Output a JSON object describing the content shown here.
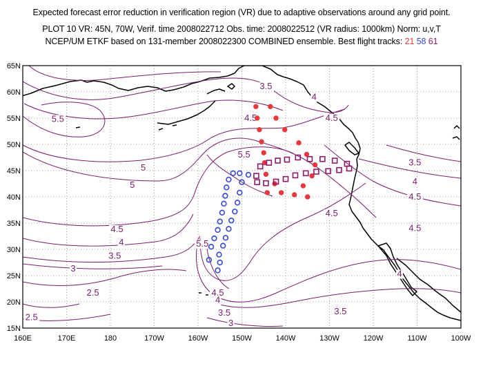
{
  "header": {
    "line1": "Expected forecast error reduction in verification region (VR) due to adaptive observations around any grid point.",
    "line2": "PLOT 10 VR: 45N, 70W, Verif. time 2008022712 Obs. time: 2008022512 (VR radius: 1000km) Norm: u,v,T",
    "line3_prefix": "NCEP/UM ETKF based on 131-member 2008022300 COMBINED ensemble.  Best flight tracks:",
    "track_21": "21",
    "track_58": "58",
    "track_61": "61"
  },
  "axes": {
    "lon_labels": [
      "160E",
      "170E",
      "180",
      "170W",
      "160W",
      "150W",
      "140W",
      "130W",
      "120W",
      "110W",
      "100W"
    ],
    "lat_labels": [
      "15N",
      "20N",
      "25N",
      "30N",
      "35N",
      "40N",
      "45N",
      "50N",
      "55N",
      "60N",
      "65N"
    ]
  },
  "contour_labels": [
    {
      "text": "3.5",
      "lon": -144.5,
      "lat": 60.5
    },
    {
      "text": "4",
      "lon": -133.5,
      "lat": 58.5
    },
    {
      "text": "4.5",
      "lon": -148,
      "lat": 54.5
    },
    {
      "text": "4.5",
      "lon": -129.5,
      "lat": 54.5
    },
    {
      "text": "5.5",
      "lon": 168,
      "lat": 54.3
    },
    {
      "text": "5.5",
      "lon": -149.5,
      "lat": 47.5
    },
    {
      "text": "5",
      "lon": -172.5,
      "lat": 45.0
    },
    {
      "text": "5",
      "lon": -175,
      "lat": 41.7
    },
    {
      "text": "3.5",
      "lon": -110.5,
      "lat": 46.0
    },
    {
      "text": "4",
      "lon": -110.5,
      "lat": 42.4
    },
    {
      "text": "4.5",
      "lon": -110.5,
      "lat": 39.5
    },
    {
      "text": "4.5",
      "lon": -129.5,
      "lat": 36.3
    },
    {
      "text": "4.5",
      "lon": -110.5,
      "lat": 33.5
    },
    {
      "text": "4.5",
      "lon": -178.5,
      "lat": 33.3
    },
    {
      "text": "4",
      "lon": -177.5,
      "lat": 30.8
    },
    {
      "text": "5.5",
      "lon": -159,
      "lat": 30.5
    },
    {
      "text": "3.5",
      "lon": -179,
      "lat": 28.2
    },
    {
      "text": "3",
      "lon": 171.5,
      "lat": 25.8
    },
    {
      "text": "4",
      "lon": -114,
      "lat": 24.8
    },
    {
      "text": "2.5",
      "lon": 176,
      "lat": 21.2
    },
    {
      "text": "4.5",
      "lon": -155.5,
      "lat": 21.2
    },
    {
      "text": "4",
      "lon": -155.5,
      "lat": 19.8
    },
    {
      "text": "3.5",
      "lon": -154,
      "lat": 17.4
    },
    {
      "text": "3.5",
      "lon": -127.5,
      "lat": 17.6
    },
    {
      "text": "2.5",
      "lon": 162,
      "lat": 16.5
    },
    {
      "text": "3",
      "lon": -152.5,
      "lat": 15.4
    }
  ],
  "tracks": {
    "21": {
      "color": "#e8383d",
      "points": [
        [
          -146.8,
          57.2
        ],
        [
          -143.5,
          57.2
        ],
        [
          -146.5,
          55.0
        ],
        [
          -142.2,
          55.0
        ],
        [
          -146.0,
          52.8
        ],
        [
          -140.2,
          52.8
        ],
        [
          -145.5,
          50.5
        ],
        [
          -137.0,
          50.3
        ],
        [
          -145.0,
          48.4
        ],
        [
          -135.2,
          48.1
        ],
        [
          -144.8,
          46.5
        ],
        [
          -133.3,
          46.1
        ],
        [
          -144.5,
          44.3
        ],
        [
          -134.0,
          44.0
        ],
        [
          -142.5,
          42.5
        ],
        [
          -136.0,
          42.1
        ],
        [
          -144.2,
          40.8
        ],
        [
          -138.0,
          40.4
        ],
        [
          -141.0,
          40.8
        ],
        [
          -135.0,
          40.0
        ]
      ]
    },
    "58": {
      "color": "#3548d9",
      "points": [
        [
          -152.0,
          44.5
        ],
        [
          -150.5,
          44.5
        ],
        [
          -148.5,
          44.2
        ],
        [
          -153.0,
          43.3
        ],
        [
          -150.0,
          42.8
        ],
        [
          -153.5,
          41.8
        ],
        [
          -150.5,
          40.8
        ],
        [
          -153.8,
          40.2
        ],
        [
          -151.0,
          38.9
        ],
        [
          -154.1,
          38.7
        ],
        [
          -151.6,
          37.2
        ],
        [
          -154.5,
          37.0
        ],
        [
          -152.4,
          35.5
        ],
        [
          -155.0,
          35.3
        ],
        [
          -153.0,
          33.9
        ],
        [
          -155.5,
          33.7
        ],
        [
          -153.7,
          32.2
        ],
        [
          -156.3,
          32.1
        ],
        [
          -154.3,
          30.7
        ],
        [
          -157.0,
          30.5
        ],
        [
          -155.2,
          29.0
        ],
        [
          -157.5,
          28.0
        ],
        [
          -155.0,
          27.5
        ],
        [
          -155.5,
          26.0
        ]
      ]
    },
    "61": {
      "color": "#8b1a6b",
      "points": [
        [
          -146.7,
          44.0
        ],
        [
          -145.8,
          45.8
        ],
        [
          -143.8,
          46.5
        ],
        [
          -141.8,
          46.9
        ],
        [
          -139.7,
          47.1
        ],
        [
          -137.2,
          47.5
        ],
        [
          -134.5,
          47.2
        ],
        [
          -131.6,
          47.2
        ],
        [
          -128.8,
          46.9
        ],
        [
          -126.0,
          46.3
        ],
        [
          -146.5,
          42.8
        ],
        [
          -144.5,
          42.6
        ],
        [
          -142.2,
          42.9
        ],
        [
          -140.0,
          43.4
        ],
        [
          -137.8,
          44.1
        ],
        [
          -135.4,
          44.5
        ],
        [
          -133.0,
          44.8
        ],
        [
          -130.3,
          44.9
        ],
        [
          -127.8,
          45.1
        ],
        [
          -125.5,
          45.4
        ]
      ]
    }
  }
}
